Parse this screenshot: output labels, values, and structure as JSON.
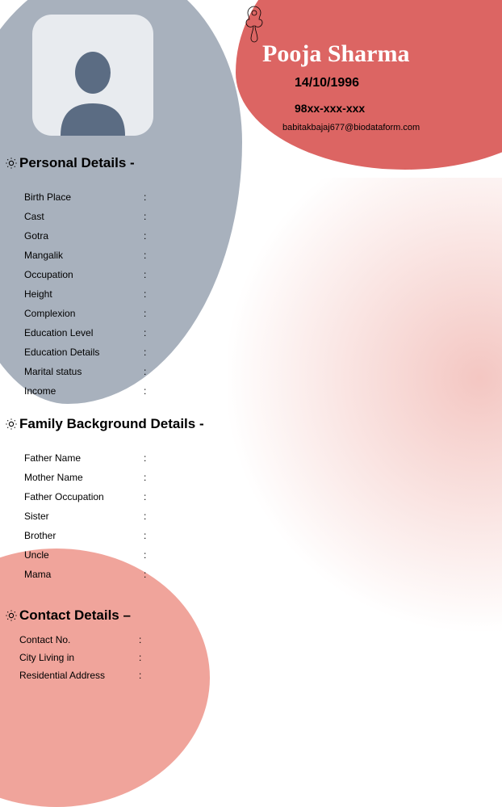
{
  "colors": {
    "grey_blob": "#a8b1bd",
    "red_top": "#dc6563",
    "pink_bottom": "#f0a49b",
    "photo_bg": "#e8ebef",
    "avatar": "#5b6c83",
    "page_bg": "#ffffff",
    "text": "#000000",
    "name_text": "#ffffff"
  },
  "typography": {
    "name_font": "Georgia, serif",
    "name_size_pt": 22,
    "section_size_pt": 13,
    "field_size_pt": 9
  },
  "header": {
    "name": "Pooja Sharma",
    "dob": "14/10/1996",
    "phone": "98xx-xxx-xxx",
    "email": "babitakbajaj677@biodataform.com"
  },
  "sections": {
    "personal": {
      "title": "Personal Details -",
      "fields": [
        {
          "label": "Birth Place",
          "value": ""
        },
        {
          "label": "Cast",
          "value": ""
        },
        {
          "label": "Gotra",
          "value": ""
        },
        {
          "label": "Mangalik",
          "value": ""
        },
        {
          "label": "Occupation",
          "value": ""
        },
        {
          "label": "Height",
          "value": ""
        },
        {
          "label": "Complexion",
          "value": ""
        },
        {
          "label": "Education Level",
          "value": ""
        },
        {
          "label": "Education Details",
          "value": ""
        },
        {
          "label": "Marital status",
          "value": ""
        },
        {
          "label": "Income",
          "value": ""
        }
      ]
    },
    "family": {
      "title": "Family Background Details -",
      "fields": [
        {
          "label": "Father Name",
          "value": ""
        },
        {
          "label": "Mother Name",
          "value": ""
        },
        {
          "label": "Father Occupation",
          "value": ""
        },
        {
          "label": "Sister",
          "value": ""
        },
        {
          "label": "Brother",
          "value": ""
        },
        {
          "label": "Uncle",
          "value": ""
        },
        {
          "label": "Mama",
          "value": ""
        }
      ]
    },
    "contact": {
      "title": "Contact Details –",
      "fields": [
        {
          "label": "Contact No.",
          "value": ""
        },
        {
          "label": "City Living in",
          "value": ""
        },
        {
          "label": "Residential Address",
          "value": ""
        }
      ]
    }
  }
}
